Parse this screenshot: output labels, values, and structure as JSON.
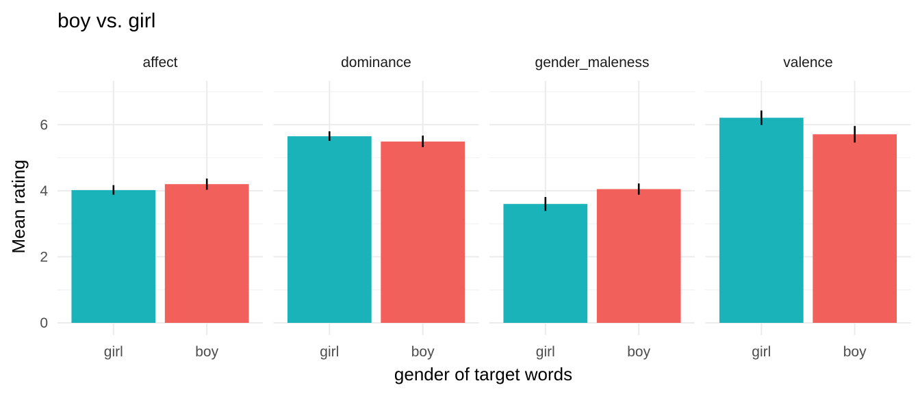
{
  "chart_data": {
    "type": "bar",
    "title": "boy vs. girl",
    "xlabel": "gender of target words",
    "ylabel": "Mean rating",
    "ylim": [
      0,
      7.2
    ],
    "yticks": [
      0,
      2,
      4,
      6
    ],
    "categories": [
      "girl",
      "boy"
    ],
    "colors": {
      "girl": "#19b3b9",
      "boy": "#f2605c"
    },
    "grid": true,
    "legend": "none",
    "panels": [
      {
        "name": "affect",
        "values": [
          4.02,
          4.2
        ],
        "errors": [
          [
            3.88,
            4.17
          ],
          [
            4.03,
            4.37
          ]
        ]
      },
      {
        "name": "dominance",
        "values": [
          5.65,
          5.49
        ],
        "errors": [
          [
            5.51,
            5.8
          ],
          [
            5.32,
            5.67
          ]
        ]
      },
      {
        "name": "gender_maleness",
        "values": [
          3.6,
          4.05
        ],
        "errors": [
          [
            3.39,
            3.81
          ],
          [
            3.88,
            4.22
          ]
        ]
      },
      {
        "name": "valence",
        "values": [
          6.21,
          5.71
        ],
        "errors": [
          [
            5.99,
            6.43
          ],
          [
            5.46,
            5.96
          ]
        ]
      }
    ]
  }
}
